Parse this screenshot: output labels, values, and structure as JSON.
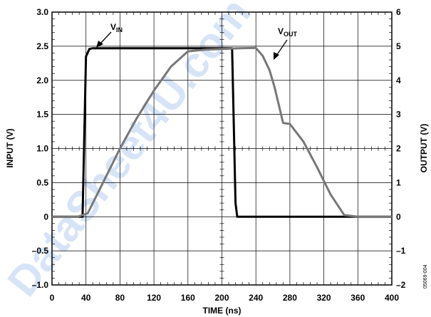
{
  "chart_data": {
    "type": "line",
    "xlabel": "TIME (ns)",
    "ylabel_left": "INPUT (V)",
    "ylabel_right": "OUTPUT (V)",
    "xlim": [
      0,
      400
    ],
    "ylim_left": [
      -1.0,
      3.0
    ],
    "ylim_right": [
      -2,
      6
    ],
    "x_ticks": [
      "0",
      "40",
      "80",
      "120",
      "160",
      "200",
      "240",
      "280",
      "320",
      "360",
      "400"
    ],
    "y_left_ticks": [
      "3.0",
      "2.5",
      "2.0",
      "1.5",
      "1.0",
      "0.5",
      "0",
      "–0.5",
      "–1.0"
    ],
    "y_right_ticks": [
      "6",
      "5",
      "4",
      "3",
      "2",
      "1",
      "0",
      "–1",
      "–2"
    ],
    "grid": true,
    "series": [
      {
        "name": "VIN",
        "axis": "left",
        "color": "#000000",
        "x": [
          0,
          36,
          40,
          44,
          48,
          60,
          100,
          150,
          200,
          212,
          216,
          218,
          240,
          300,
          360,
          400
        ],
        "y": [
          0,
          0,
          2.35,
          2.46,
          2.47,
          2.47,
          2.47,
          2.47,
          2.47,
          2.47,
          0.2,
          0,
          0,
          0,
          0,
          0
        ]
      },
      {
        "name": "VOUT",
        "axis": "right",
        "color": "#777777",
        "x": [
          0,
          30,
          42,
          60,
          80,
          100,
          120,
          140,
          160,
          180,
          200,
          220,
          240,
          248,
          256,
          262,
          272,
          280,
          296,
          312,
          328,
          344,
          360,
          400
        ],
        "y": [
          0,
          0,
          0.1,
          1.0,
          2.0,
          2.9,
          3.7,
          4.4,
          4.85,
          4.9,
          4.92,
          4.94,
          4.95,
          4.72,
          4.3,
          3.8,
          2.75,
          2.72,
          2.2,
          1.45,
          0.65,
          0.05,
          0,
          0
        ]
      }
    ],
    "annotations": [
      {
        "name": "VIN",
        "text_main": "V",
        "text_sub": "IN"
      },
      {
        "name": "VOUT",
        "text_main": "V",
        "text_sub": "OUT"
      }
    ]
  },
  "doc_number": "05069-004",
  "watermark": "DataSheet4U.com"
}
